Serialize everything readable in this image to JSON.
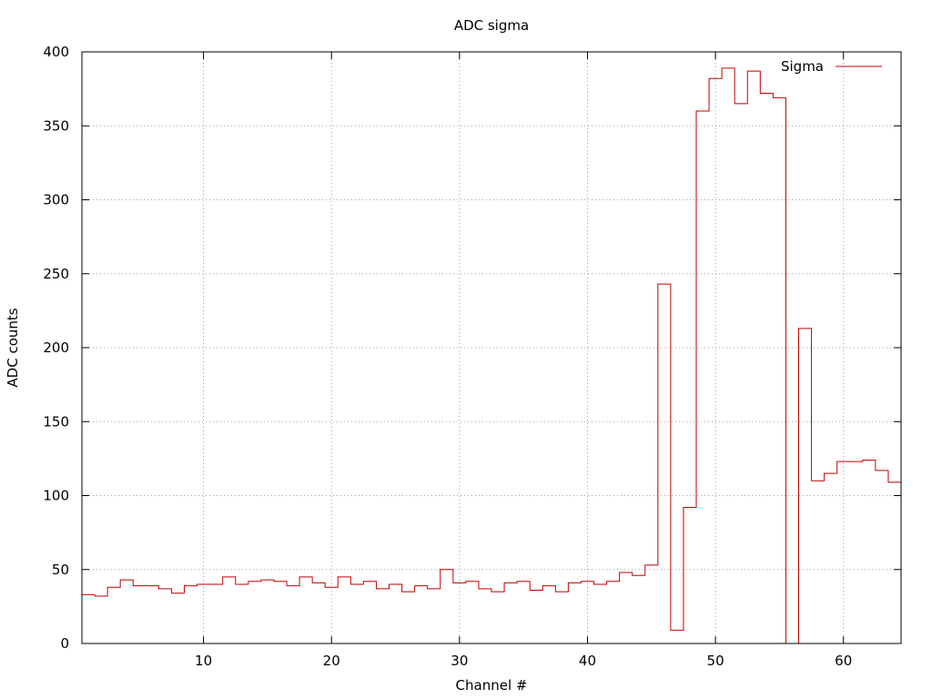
{
  "chart_data": {
    "type": "line",
    "title": "ADC sigma",
    "xlabel": "Channel #",
    "ylabel": "ADC counts",
    "xlim": [
      0.5,
      64.5
    ],
    "ylim": [
      0,
      400
    ],
    "x_ticks": [
      10,
      20,
      30,
      40,
      50,
      60
    ],
    "y_ticks": [
      0,
      50,
      100,
      150,
      200,
      250,
      300,
      350,
      400
    ],
    "grid": true,
    "legend": "top-right",
    "step": "histeps",
    "series": [
      {
        "name": "Sigma",
        "color": "#c00000",
        "x": [
          1,
          2,
          3,
          4,
          5,
          6,
          7,
          8,
          9,
          10,
          11,
          12,
          13,
          14,
          15,
          16,
          17,
          18,
          19,
          20,
          21,
          22,
          23,
          24,
          25,
          26,
          27,
          28,
          29,
          30,
          31,
          32,
          33,
          34,
          35,
          36,
          37,
          38,
          39,
          40,
          41,
          42,
          43,
          44,
          45,
          46,
          47,
          48,
          49,
          50,
          51,
          52,
          53,
          54,
          55,
          56,
          57,
          58,
          59,
          60,
          61,
          62,
          63,
          64
        ],
        "values": [
          33,
          32,
          38,
          43,
          39,
          39,
          37,
          34,
          39,
          40,
          40,
          45,
          40,
          42,
          43,
          42,
          39,
          45,
          41,
          38,
          45,
          40,
          42,
          37,
          40,
          35,
          39,
          37,
          50,
          41,
          42,
          37,
          35,
          41,
          42,
          36,
          39,
          35,
          41,
          42,
          40,
          42,
          48,
          46,
          53,
          243,
          9,
          92,
          360,
          382,
          389,
          365,
          387,
          372,
          369,
          0,
          213,
          110,
          115,
          123,
          123,
          124,
          117,
          109
        ]
      }
    ]
  }
}
